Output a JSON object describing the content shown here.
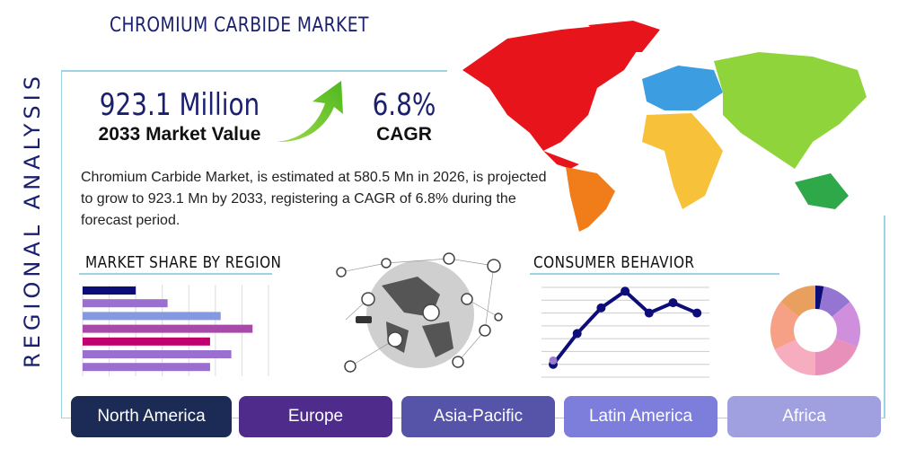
{
  "header": {
    "title": "CHROMIUM CARBIDE MARKET",
    "side_label": "REGIONAL ANALYSIS"
  },
  "stats": {
    "market_value": "923.1 Million",
    "market_value_label": "2033 Market Value",
    "cagr": "6.8%",
    "cagr_label": "CAGR"
  },
  "description": "Chromium Carbide Market, is estimated at 580.5 Mn in 2026, is projected to grow to 923.1 Mn by 2033, registering a CAGR of 6.8% during the forecast period.",
  "sections": {
    "market_share": "MARKET SHARE BY REGION",
    "consumer": "CONSUMER BEHAVIOR"
  },
  "regions": [
    {
      "label": "North America",
      "color": "#1c2b55"
    },
    {
      "label": "Europe",
      "color": "#4f2c8c"
    },
    {
      "label": "Asia-Pacific",
      "color": "#5654a8"
    },
    {
      "label": "Latin America",
      "color": "#7d7ddc"
    },
    {
      "label": "Africa",
      "color": "#a09fe0"
    }
  ],
  "icons": [
    "growth-arrow-icon",
    "world-map-icon",
    "network-globe-icon"
  ],
  "chart_data": [
    {
      "type": "bar",
      "orientation": "horizontal",
      "values": [
        2,
        3.2,
        5.2,
        6.4,
        4.8,
        5.6,
        4.8
      ],
      "colors": [
        "#0d0d7a",
        "#9a6fcf",
        "#8499e0",
        "#a84aaa",
        "#c0006e",
        "#9a6fcf",
        "#9a6fcf"
      ],
      "xlim": [
        0,
        7
      ],
      "grid": true
    },
    {
      "type": "line",
      "values": [
        1,
        3.4,
        5.4,
        6.7,
        5,
        5.8,
        5
      ],
      "extra_point": {
        "index": 0,
        "value": 1.3,
        "color": "#9a7acc"
      },
      "ylim": [
        0,
        7
      ],
      "grid": true,
      "color": "#0d0d7a"
    },
    {
      "type": "pie",
      "donut": true,
      "values": [
        3,
        11,
        17,
        19,
        18,
        18,
        14
      ],
      "colors": [
        "#0d0d7a",
        "#9476d2",
        "#d08fdc",
        "#e890ba",
        "#f7adc0",
        "#f6a085",
        "#e9a05e"
      ]
    }
  ]
}
